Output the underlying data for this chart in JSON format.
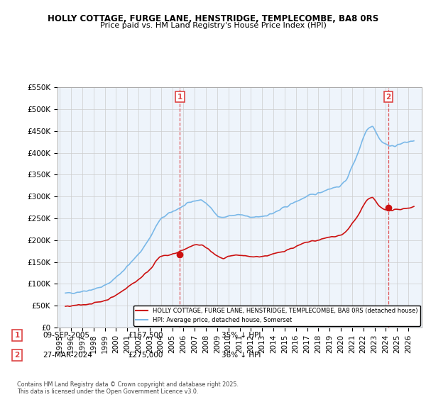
{
  "title": "HOLLY COTTAGE, FURGE LANE, HENSTRIDGE, TEMPLECOMBE, BA8 0RS",
  "subtitle": "Price paid vs. HM Land Registry's House Price Index (HPI)",
  "ylabel_ticks": [
    "£0",
    "£50K",
    "£100K",
    "£150K",
    "£200K",
    "£250K",
    "£300K",
    "£350K",
    "£400K",
    "£450K",
    "£500K",
    "£550K"
  ],
  "ylim": [
    0,
    550000
  ],
  "xlim_start": 1994.8,
  "xlim_end": 2027.2,
  "hpi_color": "#7ab8e8",
  "price_color": "#cc1111",
  "vline_color": "#dd4444",
  "grid_color": "#cccccc",
  "bg_color": "#ffffff",
  "chart_bg": "#eef4fb",
  "legend_label_red": "HOLLY COTTAGE, FURGE LANE, HENSTRIDGE, TEMPLECOMBE, BA8 0RS (detached house)",
  "legend_label_blue": "HPI: Average price, detached house, Somerset",
  "transaction1_date": "09-SEP-2005",
  "transaction1_price": "£167,500",
  "transaction1_hpi": "35% ↓ HPI",
  "transaction2_date": "27-MAR-2024",
  "transaction2_price": "£275,000",
  "transaction2_hpi": "36% ↓ HPI",
  "footnote": "Contains HM Land Registry data © Crown copyright and database right 2025.\nThis data is licensed under the Open Government Licence v3.0.",
  "marker1_x": 2005.69,
  "marker1_y": 167500,
  "marker2_x": 2024.24,
  "marker2_y": 275000,
  "vline1_x": 2005.69,
  "vline2_x": 2024.24
}
